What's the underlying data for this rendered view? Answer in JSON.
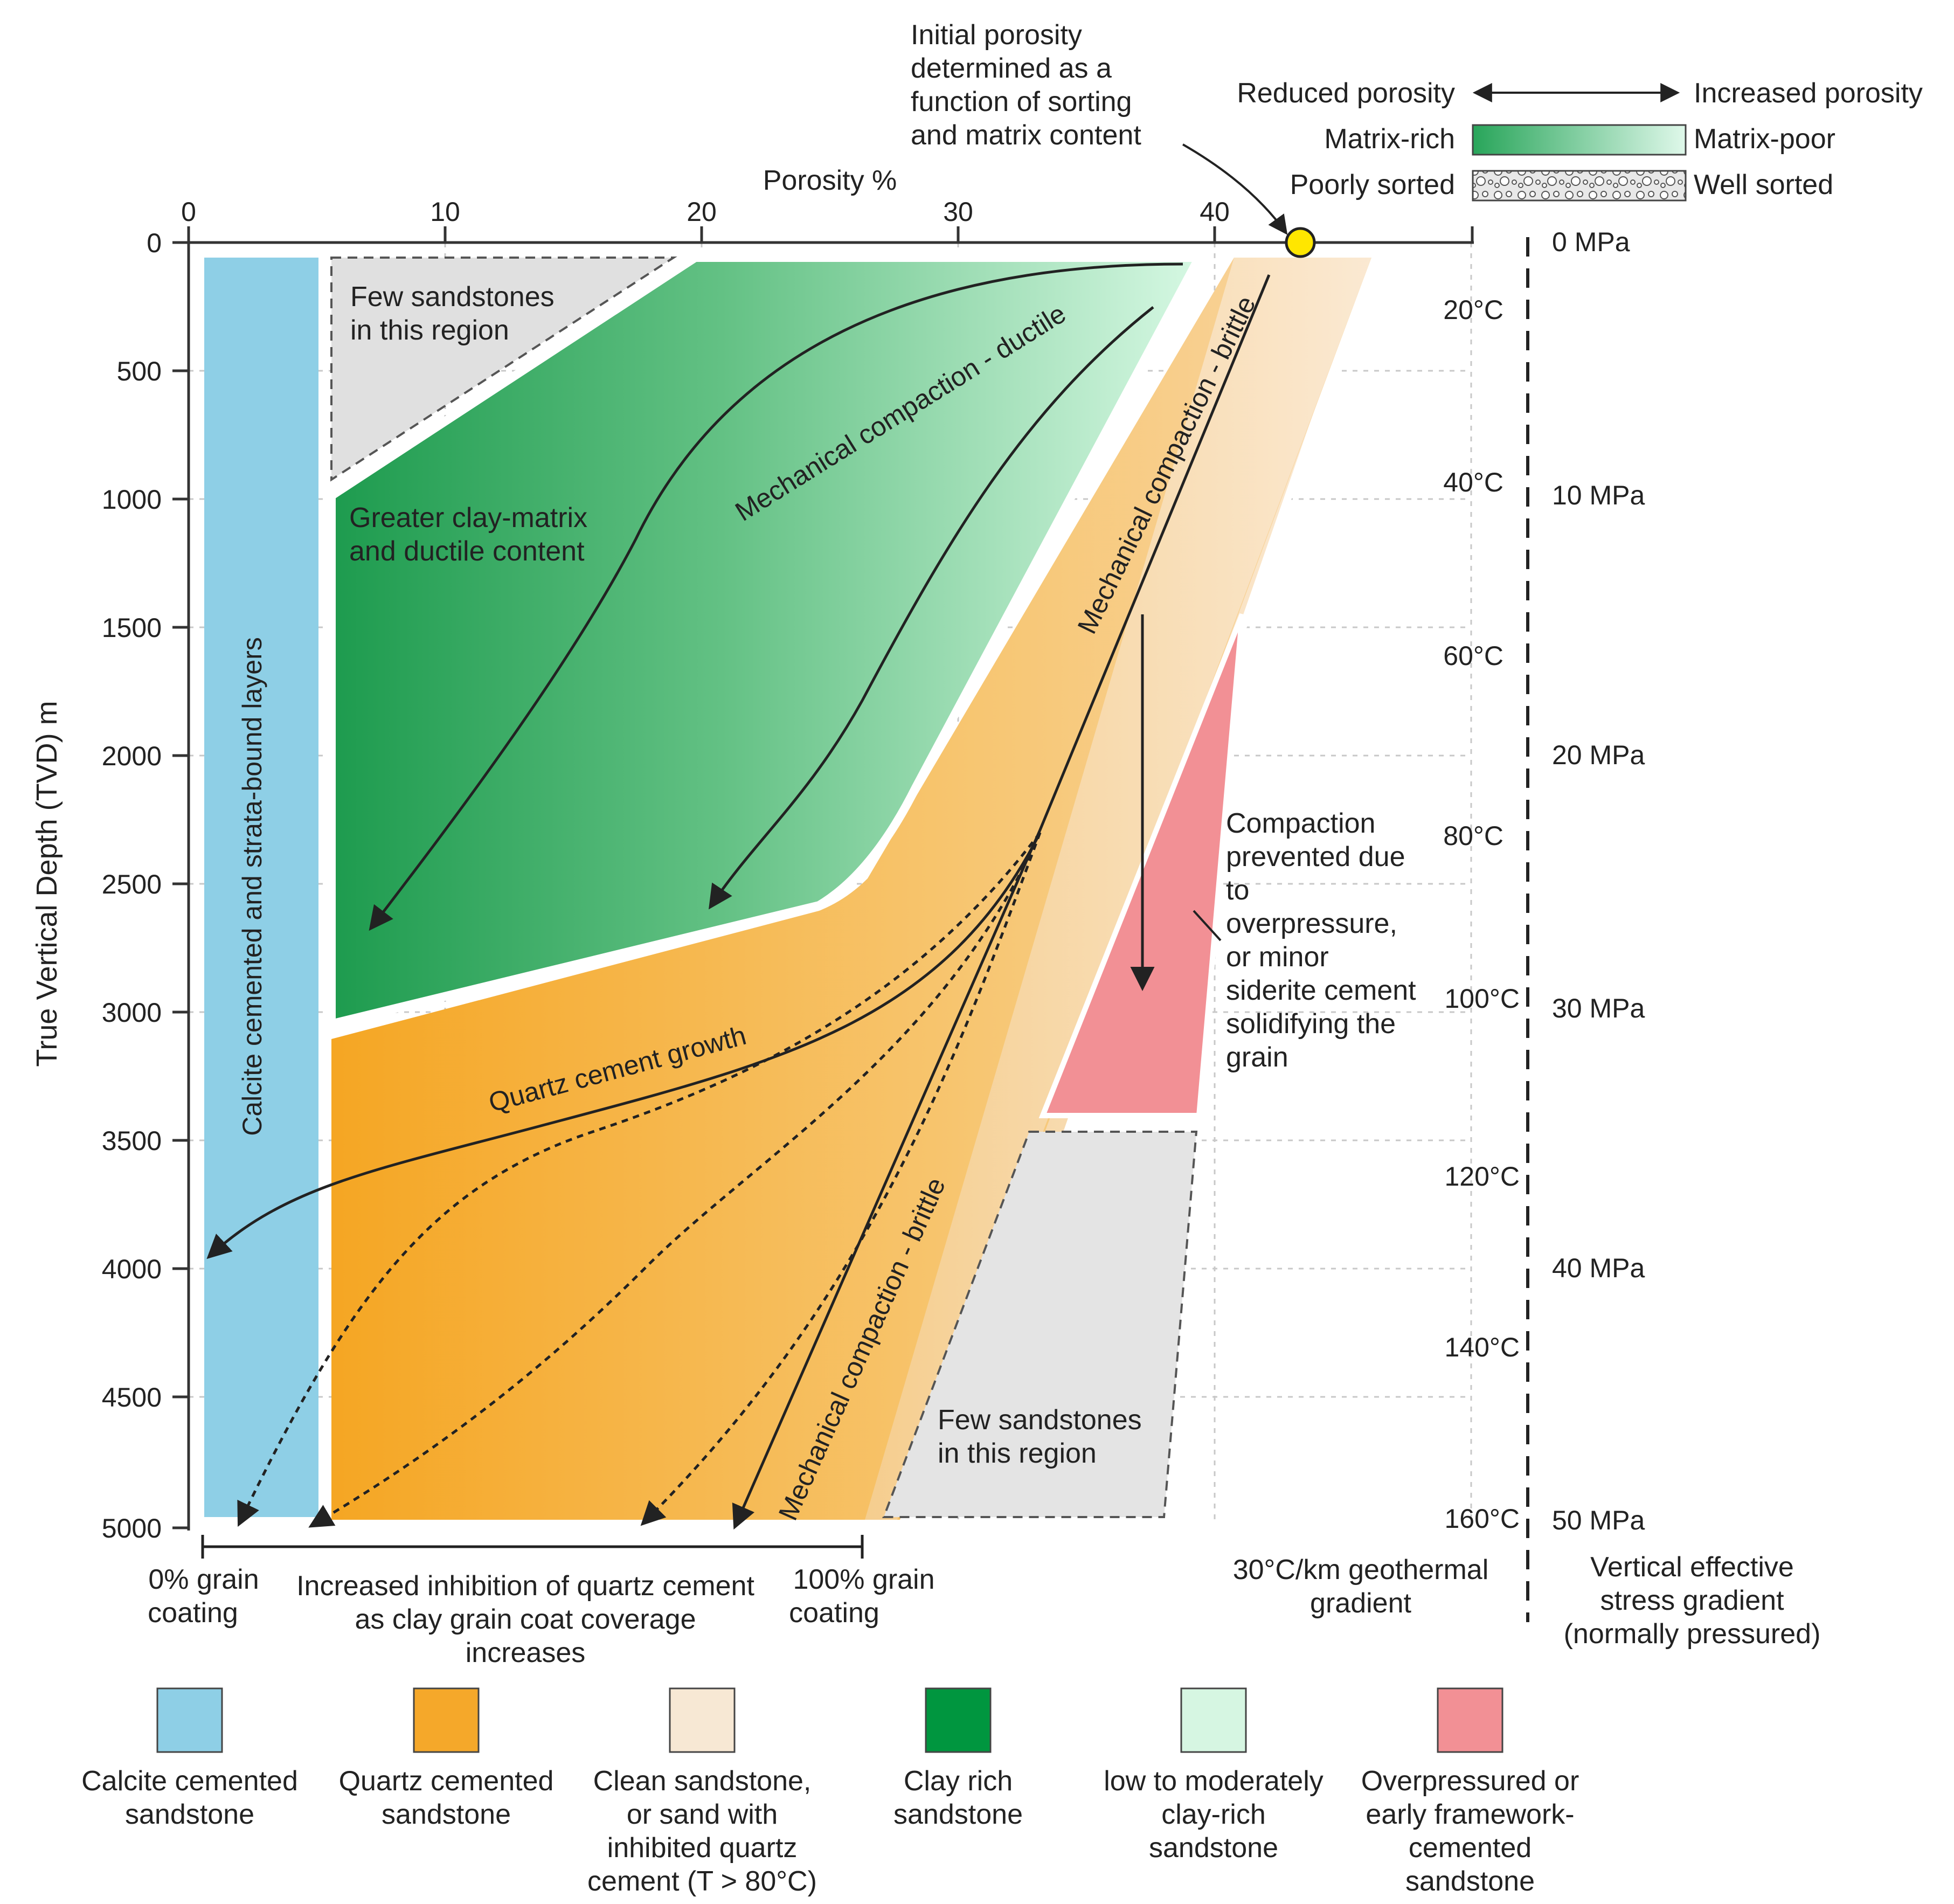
{
  "axes": {
    "x_title": "Porosity %",
    "y_title": "True Vertical Depth (TVD) m",
    "x_ticks": [
      "0",
      "10",
      "20",
      "30",
      "40"
    ],
    "y_ticks": [
      "0",
      "500",
      "1000",
      "1500",
      "2000",
      "2500",
      "3000",
      "3500",
      "4000",
      "4500",
      "5000"
    ]
  },
  "temperature": {
    "labels": [
      "20°C",
      "40°C",
      "60°C",
      "80°C",
      "100°C",
      "120°C",
      "140°C",
      "160°C"
    ],
    "caption_line1": "30°C/km geothermal",
    "caption_line2": "gradient"
  },
  "stress": {
    "labels": [
      "0 MPa",
      "10 MPa",
      "20 MPa",
      "30 MPa",
      "40 MPa",
      "50 MPa"
    ],
    "caption_line1": "Vertical effective",
    "caption_line2": "stress gradient",
    "caption_line3": "(normally pressured)"
  },
  "key": {
    "reduced": "Reduced porosity",
    "increased": "Increased porosity",
    "matrix_rich": "Matrix-rich",
    "matrix_poor": "Matrix-poor",
    "poorly_sorted": "Poorly sorted",
    "well_sorted": "Well sorted"
  },
  "annotations": {
    "initial_porosity": [
      "Initial porosity",
      "determined as a",
      "function of sorting",
      "and matrix content"
    ],
    "few_sandstones_top": [
      "Few sandstones",
      "in this region"
    ],
    "few_sandstones_bottom": [
      "Few sandstones",
      "in this region"
    ],
    "greater_clay": [
      "Greater clay-matrix",
      "and ductile content"
    ],
    "calcite_layers": "Calcite cemented and strata-bound layers",
    "mech_ductile": "Mechanical compaction - ductile",
    "mech_brittle_upper": "Mechanical compaction - brittle",
    "mech_brittle_lower": "Mechanical compaction - brittle",
    "quartz_growth": "Quartz cement growth",
    "overpressure": [
      "Compaction",
      "prevented due",
      "to",
      "overpressure,",
      "or minor",
      "siderite cement",
      "solidifying the",
      "grain"
    ]
  },
  "coating": {
    "left": [
      "0% grain",
      "coating"
    ],
    "middle": [
      "Increased inhibition of quartz cement",
      "as clay grain coat coverage",
      "increases"
    ],
    "right": [
      "100% grain",
      "coating"
    ]
  },
  "legend": [
    {
      "color": "#8ecfe6",
      "lines": [
        "Calcite cemented",
        "sandstone"
      ]
    },
    {
      "color": "#f5a82a",
      "lines": [
        "Quartz cemented",
        "sandstone"
      ]
    },
    {
      "color": "#f7e8d4",
      "lines": [
        "Clean sandstone,",
        "or sand with",
        "inhibited quartz",
        "cement (T > 80°C)"
      ]
    },
    {
      "color": "#00963f",
      "lines": [
        "Clay rich",
        "sandstone"
      ]
    },
    {
      "color": "#d6f6e2",
      "lines": [
        "low to moderately",
        "clay-rich",
        "sandstone"
      ]
    },
    {
      "color": "#f29095",
      "lines": [
        "Overpressured or",
        "early framework-",
        "cemented",
        "sandstone"
      ]
    }
  ]
}
